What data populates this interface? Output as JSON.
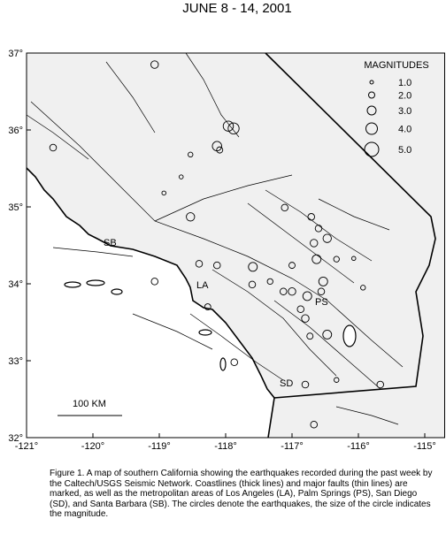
{
  "map": {
    "title": "JUNE 8 - 14, 2001",
    "xlim": [
      -121,
      -114.7
    ],
    "ylim": [
      32,
      37
    ],
    "xticks": [
      {
        "value": -121,
        "label": "-121°"
      },
      {
        "value": -120,
        "label": "-120°"
      },
      {
        "value": -119,
        "label": "-119°"
      },
      {
        "value": -118,
        "label": "-118°"
      },
      {
        "value": -117,
        "label": "-117°"
      },
      {
        "value": -116,
        "label": "-116°"
      },
      {
        "value": -115,
        "label": "-115°"
      }
    ],
    "yticks": [
      {
        "value": 37,
        "label": "37°"
      },
      {
        "value": 36,
        "label": "36°"
      },
      {
        "value": 35,
        "label": "35°"
      },
      {
        "value": 34,
        "label": "34°"
      },
      {
        "value": 33,
        "label": "33°"
      },
      {
        "value": 32,
        "label": "32°"
      }
    ],
    "legend_title": "MAGNITUDES",
    "magnitudes": [
      {
        "value": 1,
        "label": "1.0"
      },
      {
        "value": 2,
        "label": "2.0"
      },
      {
        "value": 3,
        "label": "3.0"
      },
      {
        "value": 4,
        "label": "4.0"
      },
      {
        "value": 5,
        "label": "5.0"
      }
    ],
    "cities": [
      "SB",
      "LA",
      "PS",
      "SD"
    ],
    "scale_bar": "100 KM",
    "quakes": [
      {
        "lon": -119.07,
        "lat": 36.85,
        "mag": 2.5
      },
      {
        "lon": -120.6,
        "lat": 35.77,
        "mag": 2.2
      },
      {
        "lon": -117.96,
        "lat": 36.05,
        "mag": 3.5
      },
      {
        "lon": -117.88,
        "lat": 36.02,
        "mag": 3.8
      },
      {
        "lon": -118.13,
        "lat": 35.79,
        "mag": 3.2
      },
      {
        "lon": -118.09,
        "lat": 35.74,
        "mag": 2.0
      },
      {
        "lon": -118.53,
        "lat": 35.68,
        "mag": 1.5
      },
      {
        "lon": -118.67,
        "lat": 35.39,
        "mag": 1.2
      },
      {
        "lon": -118.53,
        "lat": 34.87,
        "mag": 2.8
      },
      {
        "lon": -118.93,
        "lat": 35.18,
        "mag": 1.2
      },
      {
        "lon": -117.11,
        "lat": 34.99,
        "mag": 2.2
      },
      {
        "lon": -116.71,
        "lat": 34.87,
        "mag": 2.2
      },
      {
        "lon": -116.6,
        "lat": 34.72,
        "mag": 2.2
      },
      {
        "lon": -116.47,
        "lat": 34.59,
        "mag": 2.8
      },
      {
        "lon": -116.67,
        "lat": 34.53,
        "mag": 2.5
      },
      {
        "lon": -116.63,
        "lat": 34.32,
        "mag": 3.0
      },
      {
        "lon": -116.33,
        "lat": 34.32,
        "mag": 1.8
      },
      {
        "lon": -116.07,
        "lat": 34.33,
        "mag": 1.2
      },
      {
        "lon": -117.59,
        "lat": 34.22,
        "mag": 3.0
      },
      {
        "lon": -117.6,
        "lat": 33.99,
        "mag": 2.2
      },
      {
        "lon": -117.33,
        "lat": 34.03,
        "mag": 1.8
      },
      {
        "lon": -117.13,
        "lat": 33.9,
        "mag": 2.2
      },
      {
        "lon": -117.0,
        "lat": 33.9,
        "mag": 2.5
      },
      {
        "lon": -116.53,
        "lat": 34.03,
        "mag": 3.0
      },
      {
        "lon": -116.56,
        "lat": 33.9,
        "mag": 2.2
      },
      {
        "lon": -116.77,
        "lat": 33.84,
        "mag": 3.0
      },
      {
        "lon": -116.87,
        "lat": 33.67,
        "mag": 2.2
      },
      {
        "lon": -116.8,
        "lat": 33.55,
        "mag": 2.5
      },
      {
        "lon": -116.47,
        "lat": 33.34,
        "mag": 3.0
      },
      {
        "lon": -116.73,
        "lat": 33.32,
        "mag": 2.0
      },
      {
        "lon": -118.4,
        "lat": 34.26,
        "mag": 2.2
      },
      {
        "lon": -118.13,
        "lat": 34.24,
        "mag": 2.2
      },
      {
        "lon": -119.07,
        "lat": 34.03,
        "mag": 2.2
      },
      {
        "lon": -118.27,
        "lat": 33.7,
        "mag": 2.0
      },
      {
        "lon": -117.87,
        "lat": 32.98,
        "mag": 2.2
      },
      {
        "lon": -116.8,
        "lat": 32.69,
        "mag": 2.2
      },
      {
        "lon": -116.67,
        "lat": 32.17,
        "mag": 2.2
      },
      {
        "lon": -115.67,
        "lat": 32.69,
        "mag": 2.2
      },
      {
        "lon": -115.93,
        "lat": 33.95,
        "mag": 1.5
      },
      {
        "lon": -117.0,
        "lat": 34.24,
        "mag": 2.0
      },
      {
        "lon": -116.33,
        "lat": 32.75,
        "mag": 1.5
      }
    ]
  },
  "caption": "Figure 1. A map of southern California showing the earthquakes recorded during the past week by the Caltech/USGS Seismic Network. Coastlines (thick lines) and major faults (thin lines) are marked, as well as the metropolitan areas of Los Angeles (LA), Palm Springs (PS), San Diego (SD), and Santa Barbara (SB). The circles denote the earthquakes, the size of the circle indicates the magnitude."
}
